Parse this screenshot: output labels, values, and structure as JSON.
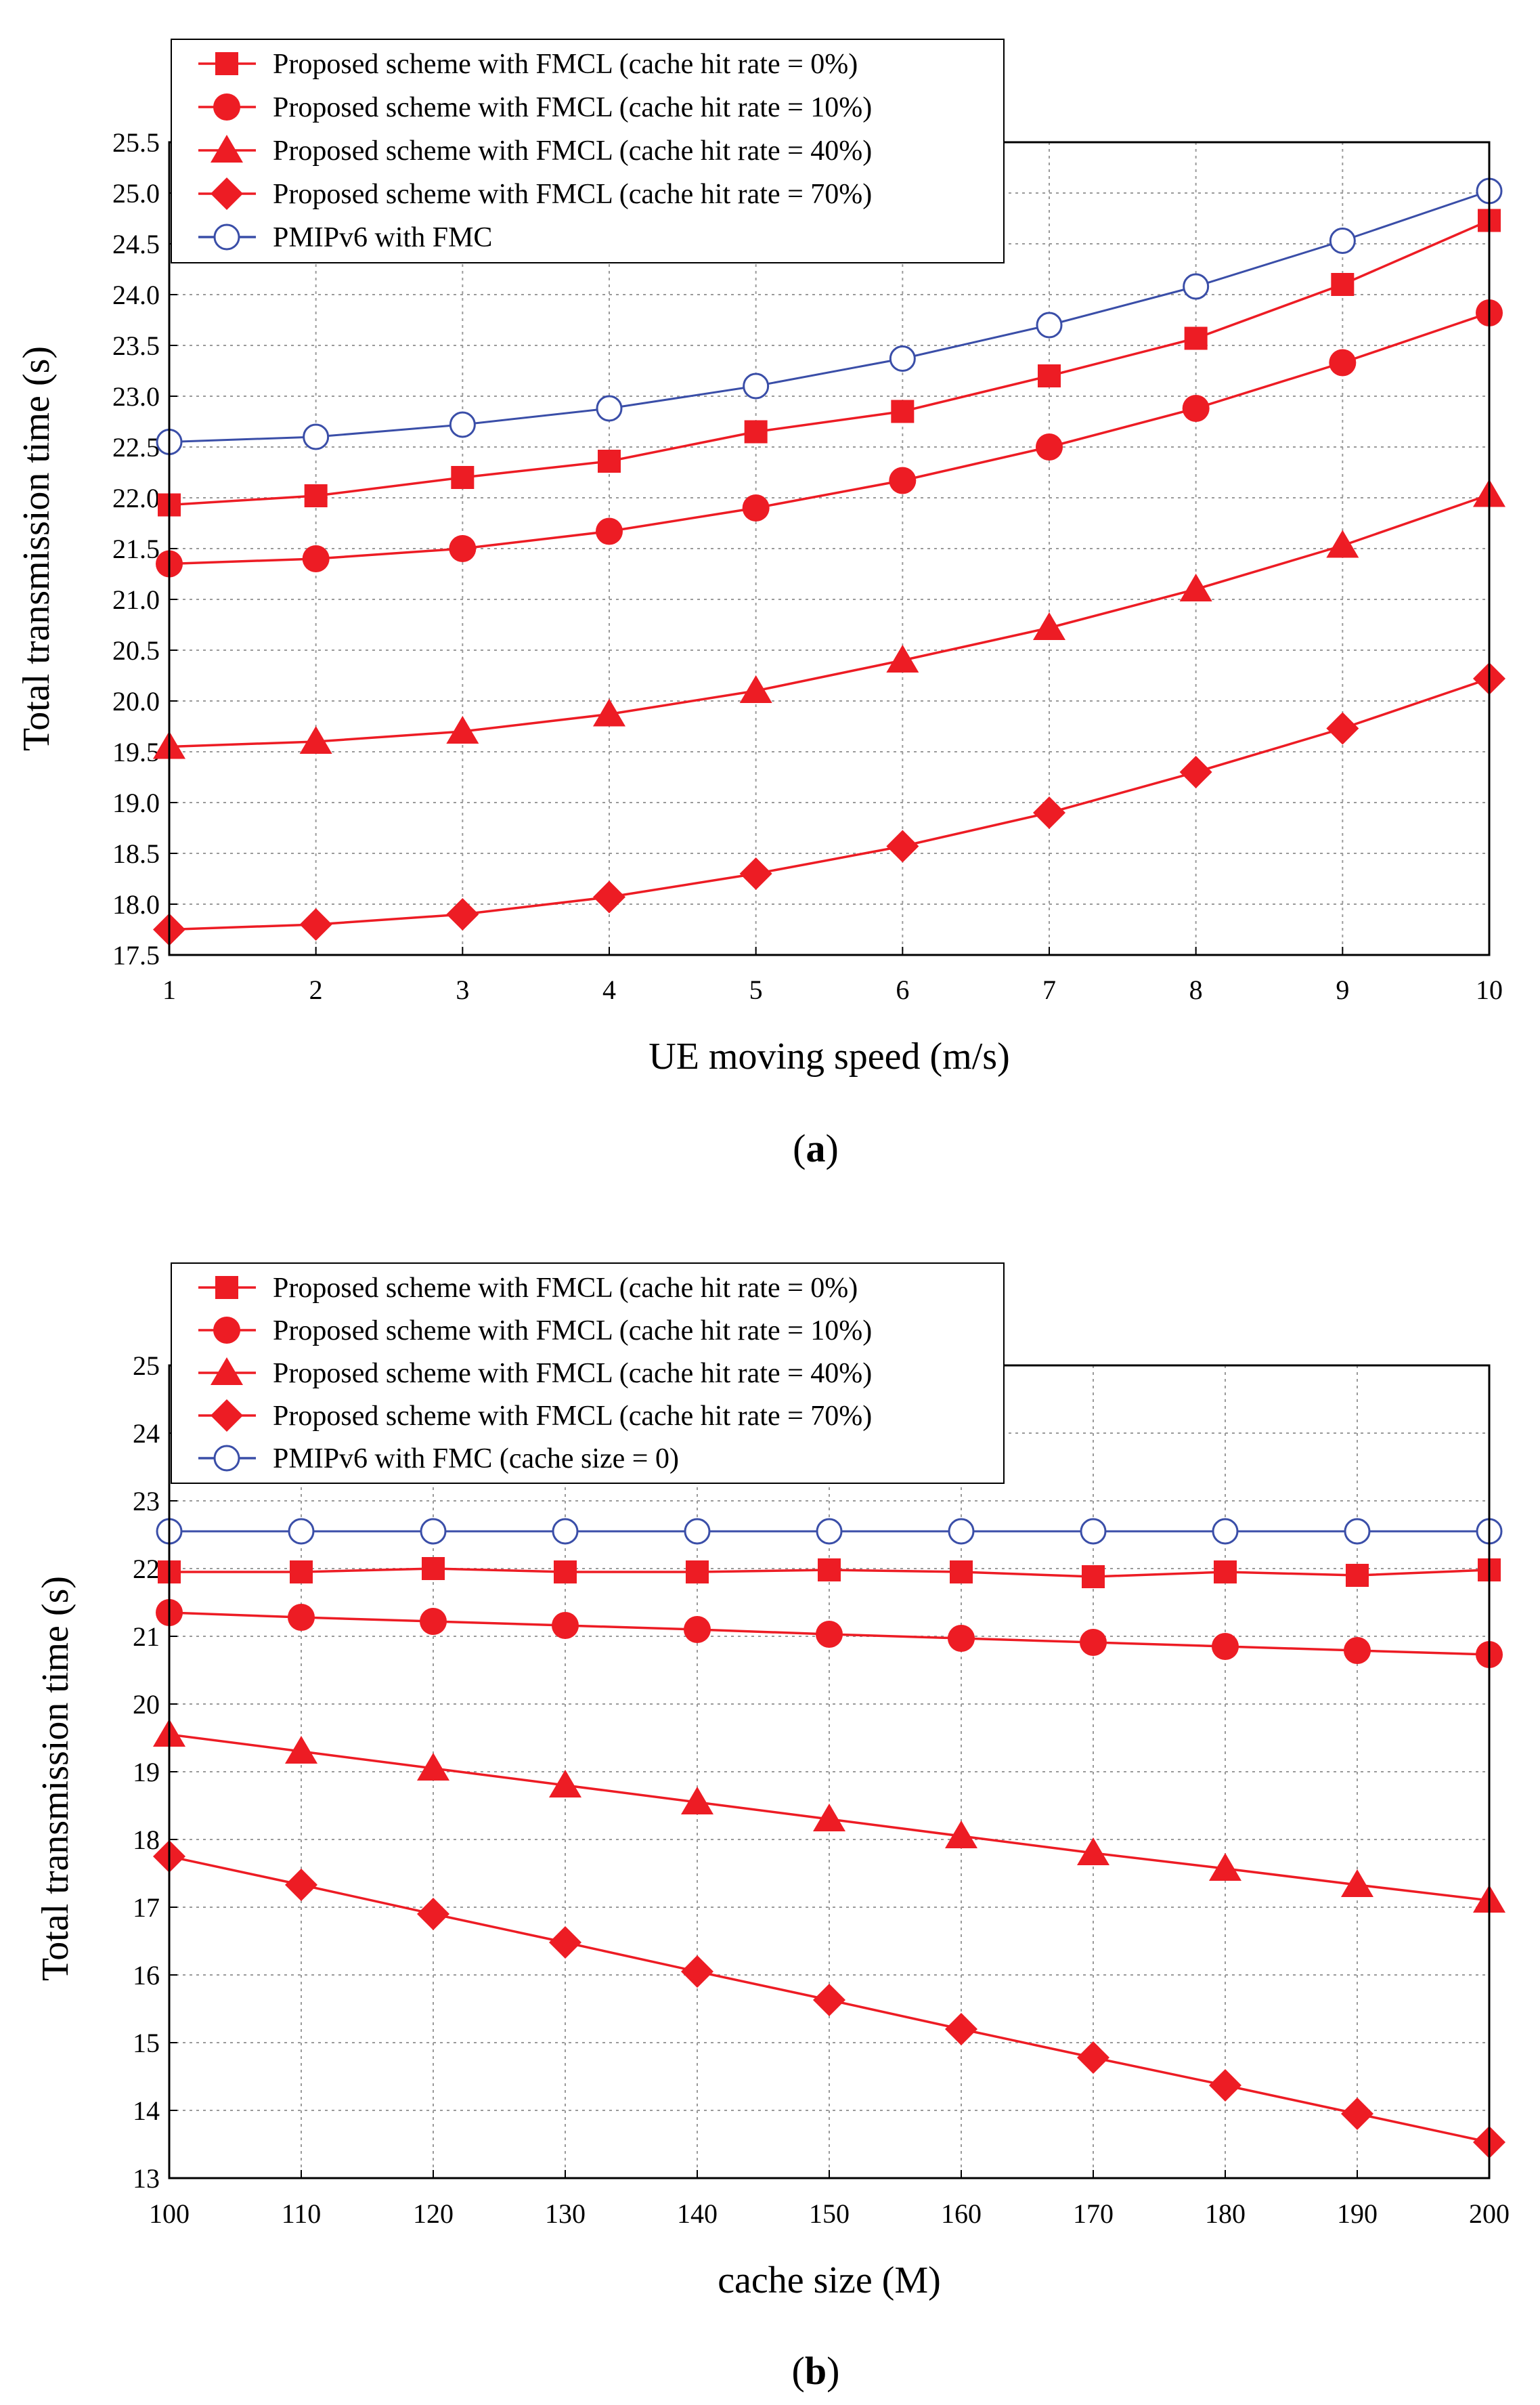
{
  "colors": {
    "red": "#ed1c24",
    "blue": "#3a4ea8",
    "grid": "#9a9a9a",
    "axis": "#000000"
  },
  "chart_data": [
    {
      "type": "line",
      "caption_paren_open": "(",
      "caption_letter": "a",
      "caption_paren_close": ")",
      "xlabel": "UE moving speed (m/s)",
      "ylabel": "Total transmission time (s)",
      "xlim": [
        1,
        10
      ],
      "ylim": [
        17.5,
        25.5
      ],
      "x": [
        1,
        2,
        3,
        4,
        5,
        6,
        7,
        8,
        9,
        10
      ],
      "xticks": [
        "1",
        "2",
        "3",
        "4",
        "5",
        "6",
        "7",
        "8",
        "9",
        "10"
      ],
      "yticks": [
        "17.5",
        "18.0",
        "18.5",
        "19.0",
        "19.5",
        "20.0",
        "20.5",
        "21.0",
        "21.5",
        "22.0",
        "22.5",
        "23.0",
        "23.5",
        "24.0",
        "24.5",
        "25.0",
        "25.5"
      ],
      "series": [
        {
          "name": "Proposed scheme with FMCL (cache hit rate = 0%)",
          "marker": "square",
          "color": "#ed1c24",
          "values": [
            21.93,
            22.02,
            22.2,
            22.36,
            22.65,
            22.85,
            23.2,
            23.57,
            24.1,
            24.73
          ]
        },
        {
          "name": "Proposed scheme with FMCL (cache hit rate = 10%)",
          "marker": "circle",
          "color": "#ed1c24",
          "values": [
            21.35,
            21.4,
            21.5,
            21.67,
            21.9,
            22.17,
            22.5,
            22.88,
            23.33,
            23.82
          ]
        },
        {
          "name": "Proposed scheme with FMCL (cache hit rate = 40%)",
          "marker": "triangle",
          "color": "#ed1c24",
          "values": [
            19.55,
            19.6,
            19.7,
            19.87,
            20.1,
            20.4,
            20.72,
            21.1,
            21.53,
            22.03
          ]
        },
        {
          "name": "Proposed scheme with FMCL (cache hit rate = 70%)",
          "marker": "diamond",
          "color": "#ed1c24",
          "values": [
            17.75,
            17.8,
            17.9,
            18.07,
            18.3,
            18.57,
            18.9,
            19.3,
            19.73,
            20.22
          ]
        },
        {
          "name": "PMIPv6 with FMC",
          "marker": "open-circle",
          "color": "#3a4ea8",
          "values": [
            22.55,
            22.6,
            22.72,
            22.88,
            23.1,
            23.37,
            23.7,
            24.08,
            24.53,
            25.02
          ]
        }
      ]
    },
    {
      "type": "line",
      "caption_paren_open": "(",
      "caption_letter": "b",
      "caption_paren_close": ")",
      "xlabel": "cache size (M)",
      "ylabel": "Total transmission time (s)",
      "xlim": [
        100,
        200
      ],
      "ylim": [
        13,
        25
      ],
      "x": [
        100,
        110,
        120,
        130,
        140,
        150,
        160,
        170,
        180,
        190,
        200
      ],
      "xticks": [
        "100",
        "110",
        "120",
        "130",
        "140",
        "150",
        "160",
        "170",
        "180",
        "190",
        "200"
      ],
      "yticks": [
        "13",
        "14",
        "15",
        "16",
        "17",
        "18",
        "19",
        "20",
        "21",
        "22",
        "23",
        "24",
        "25"
      ],
      "series": [
        {
          "name": "Proposed scheme with FMCL (cache hit rate = 0%)",
          "marker": "square",
          "color": "#ed1c24",
          "values": [
            21.95,
            21.95,
            22.0,
            21.95,
            21.95,
            21.98,
            21.95,
            21.88,
            21.95,
            21.9,
            21.98
          ]
        },
        {
          "name": "Proposed scheme with FMCL (cache hit rate = 10%)",
          "marker": "circle",
          "color": "#ed1c24",
          "values": [
            21.35,
            21.28,
            21.22,
            21.16,
            21.1,
            21.03,
            20.97,
            20.91,
            20.85,
            20.79,
            20.73
          ]
        },
        {
          "name": "Proposed scheme with FMCL (cache hit rate = 40%)",
          "marker": "triangle",
          "color": "#ed1c24",
          "values": [
            19.55,
            19.3,
            19.05,
            18.8,
            18.55,
            18.3,
            18.05,
            17.8,
            17.57,
            17.33,
            17.1
          ]
        },
        {
          "name": "Proposed scheme with FMCL (cache hit rate = 70%)",
          "marker": "diamond",
          "color": "#ed1c24",
          "values": [
            17.75,
            17.33,
            16.9,
            16.48,
            16.05,
            15.63,
            15.2,
            14.78,
            14.37,
            13.95,
            13.53
          ]
        },
        {
          "name": "PMIPv6 with FMC (cache size = 0)",
          "marker": "open-circle",
          "color": "#3a4ea8",
          "values": [
            22.55,
            22.55,
            22.55,
            22.55,
            22.55,
            22.55,
            22.55,
            22.55,
            22.55,
            22.55,
            22.55
          ]
        }
      ]
    }
  ]
}
